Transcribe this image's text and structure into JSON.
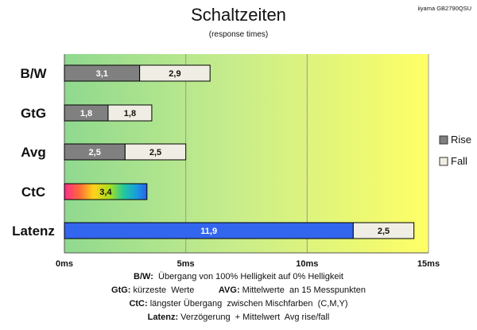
{
  "chart_data": {
    "type": "bar",
    "orientation": "horizontal",
    "stacked": true,
    "title": "Schaltzeiten",
    "subtitle": "(response times)",
    "model": "iiyama GB2790QSU",
    "categories": [
      "B/W",
      "GtG",
      "Avg",
      "CtC",
      "Latenz"
    ],
    "x_tick_labels": [
      "0ms",
      "5ms",
      "10ms",
      "15ms"
    ],
    "xlim": [
      0,
      15
    ],
    "grid": "vertical",
    "legend_position": "right",
    "series": [
      {
        "name": "Rise",
        "color": "#808080",
        "values": [
          3.1,
          1.8,
          2.5,
          null,
          null
        ]
      },
      {
        "name": "Fall",
        "color": "#f0eee4",
        "values": [
          2.9,
          1.8,
          2.5,
          null,
          2.5
        ]
      }
    ],
    "special_bars": [
      {
        "category": "CtC",
        "value": 3.4,
        "label": "3,4",
        "style": "rainbow"
      },
      {
        "category": "Latenz",
        "value": 11.9,
        "label": "11,9",
        "style": "blue"
      }
    ],
    "value_labels": {
      "Rise": [
        "3,1",
        "1,8",
        "2,5",
        "",
        ""
      ],
      "Fall": [
        "2,9",
        "1,8",
        "2,5",
        "",
        "2,5"
      ]
    },
    "background_gradient": [
      "#8fd98f",
      "#ffff66"
    ],
    "colors": {
      "latency_bar": "#3366ee",
      "rise": "#808080",
      "fall": "#f0eee4"
    }
  },
  "footnotes": [
    {
      "key": "B/W:",
      "text": "  Übergang von 100% Helligkeit auf 0% Helligkeit"
    },
    {
      "key": "GtG:",
      "text": " kürzeste  Werte          ",
      "key2": "AVG:",
      "text2": " Mittelwerte  an 15 Messpunkten"
    },
    {
      "key": "CtC:",
      "text": " längster Übergang  zwischen Mischfarben  (C,M,Y)"
    },
    {
      "key": "Latenz:",
      "text": " Verzögerung  + Mittelwert  Avg rise/fall"
    }
  ]
}
